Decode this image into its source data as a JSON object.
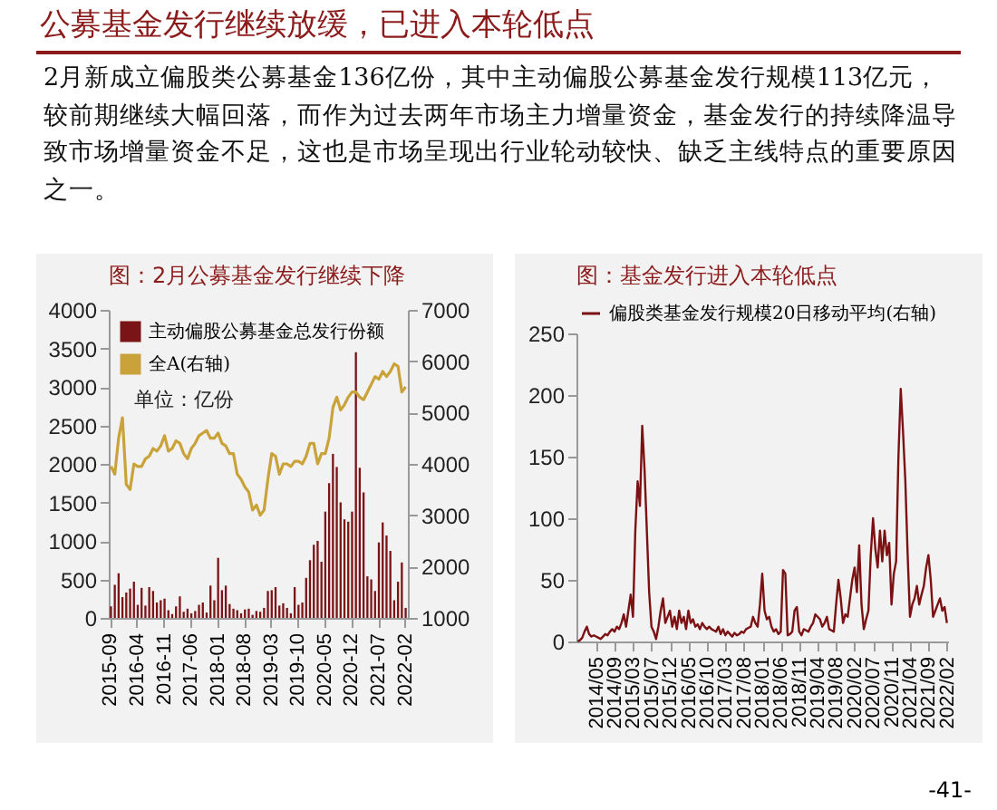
{
  "chart_data": [
    {
      "type": "other",
      "title": "公募基金发行继续放缓，已进入本轮低点",
      "annotations": [
        "2月新成立偏股类公募基金136亿份，其中主动偏股公募基金发行规模113亿元，较前期继续大幅回落，而作为过去两年市场主力增量资金，基金发行的持续降温导致市场增量资金不足，这也是市场呈现出行业轮动较快、缺乏主线特点的重要原因之一。",
        "-41-"
      ]
    },
    {
      "type": "bar",
      "title": "图：2月公募基金发行继续下降",
      "categories": [
        "2015-09",
        null,
        null,
        null,
        null,
        null,
        null,
        "2016-04",
        null,
        null,
        null,
        null,
        null,
        null,
        "2016-11",
        null,
        null,
        null,
        null,
        null,
        null,
        "2017-06",
        null,
        null,
        null,
        null,
        null,
        null,
        "2018-01",
        null,
        null,
        null,
        null,
        null,
        null,
        "2018-08",
        null,
        null,
        null,
        null,
        null,
        null,
        "2019-03",
        null,
        null,
        null,
        null,
        null,
        null,
        "2019-10",
        null,
        null,
        null,
        null,
        null,
        null,
        "2020-05",
        null,
        null,
        null,
        null,
        null,
        null,
        "2020-12",
        null,
        null,
        null,
        null,
        null,
        null,
        "2021-07",
        null,
        null,
        null,
        null,
        null,
        null,
        "2022-02"
      ],
      "series": [
        {
          "name": "主动偏股公募基金总发行份额",
          "color": "#7b1416",
          "values": [
            150,
            430,
            580,
            270,
            330,
            380,
            470,
            170,
            390,
            160,
            400,
            350,
            200,
            230,
            250,
            100,
            50,
            150,
            280,
            80,
            120,
            60,
            90,
            170,
            200,
            70,
            420,
            230,
            780,
            360,
            420,
            180,
            120,
            100,
            60,
            110,
            120,
            40,
            90,
            80,
            130,
            350,
            360,
            400,
            160,
            190,
            130,
            60,
            400,
            170,
            200,
            520,
            750,
            950,
            1000,
            730,
            1380,
            1750,
            2130,
            1960,
            1500,
            1280,
            1250,
            1380,
            3450,
            1950,
            1630,
            540,
            500,
            350,
            980,
            1240,
            1070,
            870,
            230,
            470,
            720,
            130
          ]
        },
        {
          "name": "全A(右轴)",
          "type": "line",
          "axis": "y2",
          "color": "#c9a23a",
          "values": [
            3950,
            3800,
            4500,
            4900,
            3600,
            3500,
            4000,
            3950,
            3950,
            4100,
            4150,
            4300,
            4250,
            4350,
            4550,
            4250,
            4300,
            4450,
            4400,
            4200,
            4100,
            4300,
            4400,
            4550,
            4600,
            4650,
            4500,
            4500,
            4600,
            4400,
            4350,
            4200,
            4200,
            3800,
            3700,
            3550,
            3450,
            3100,
            3200,
            3000,
            3100,
            3700,
            4200,
            4150,
            3800,
            4000,
            4000,
            3950,
            4050,
            4050,
            4000,
            4150,
            4400,
            4400,
            4000,
            4200,
            4200,
            4500,
            5100,
            5300,
            5050,
            5150,
            5300,
            5400,
            5400,
            5300,
            5250,
            5400,
            5550,
            5700,
            5650,
            5800,
            5700,
            5800,
            5950,
            5900,
            5400,
            5500
          ]
        }
      ],
      "ylim": [
        0,
        4000
      ],
      "yticks": [
        0,
        500,
        1000,
        1500,
        2000,
        2500,
        3000,
        3500,
        4000
      ],
      "y2lim": [
        1000,
        7000
      ],
      "y2ticks": [
        1000,
        2000,
        3000,
        4000,
        5000,
        6000,
        7000
      ],
      "legend": "top left",
      "annotations": [
        "单位：亿份"
      ]
    },
    {
      "type": "line",
      "title": "图：基金发行进入本轮低点",
      "categories": [
        null,
        null,
        null,
        null,
        null,
        null,
        null,
        null,
        "2014/05",
        null,
        null,
        null,
        null,
        null,
        null,
        null,
        "2014/09",
        null,
        null,
        null,
        null,
        null,
        null,
        null,
        "2015/03",
        null,
        null,
        null,
        null,
        null,
        null,
        null,
        "2015/07",
        null,
        null,
        null,
        null,
        null,
        null,
        null,
        "2015/12",
        null,
        null,
        null,
        null,
        null,
        null,
        null,
        "2016/05",
        null,
        null,
        null,
        null,
        null,
        null,
        null,
        "2016/10",
        null,
        null,
        null,
        null,
        null,
        null,
        null,
        "2017/03",
        null,
        null,
        null,
        null,
        null,
        null,
        null,
        "2017/08",
        null,
        null,
        null,
        null,
        null,
        null,
        null,
        "2018/01",
        null,
        null,
        null,
        null,
        null,
        null,
        null,
        "2018/06",
        null,
        null,
        null,
        null,
        null,
        null,
        null,
        "2018/11",
        null,
        null,
        null,
        null,
        null,
        null,
        null,
        "2019/04",
        null,
        null,
        null,
        null,
        null,
        null,
        null,
        "2019/08",
        null,
        null,
        null,
        null,
        null,
        null,
        null,
        "2020/02",
        null,
        null,
        null,
        null,
        null,
        null,
        null,
        "2020/07",
        null,
        null,
        null,
        null,
        null,
        null,
        null,
        "2020/11",
        null,
        null,
        null,
        null,
        null,
        null,
        null,
        "2021/04",
        null,
        null,
        null,
        null,
        null,
        null,
        null,
        "2021/09",
        null,
        null,
        null,
        null,
        null,
        null,
        null,
        "2022/02"
      ],
      "series": [
        {
          "name": "偏股类基金发行规模20日移动平均(右轴)",
          "color": "#7b1113",
          "values": [
            0,
            1,
            3,
            8,
            12,
            6,
            4,
            5,
            4,
            3,
            2,
            4,
            6,
            5,
            8,
            10,
            8,
            12,
            10,
            15,
            22,
            12,
            25,
            38,
            20,
            90,
            130,
            110,
            175,
            140,
            90,
            40,
            12,
            8,
            2,
            12,
            25,
            35,
            15,
            20,
            25,
            12,
            20,
            10,
            25,
            15,
            20,
            10,
            25,
            15,
            18,
            12,
            14,
            10,
            15,
            12,
            10,
            12,
            10,
            9,
            8,
            12,
            6,
            10,
            5,
            8,
            6,
            4,
            7,
            5,
            6,
            8,
            7,
            10,
            11,
            12,
            20,
            15,
            12,
            30,
            55,
            25,
            18,
            20,
            12,
            8,
            10,
            6,
            8,
            58,
            55,
            5,
            6,
            8,
            25,
            28,
            8,
            5,
            10,
            9,
            8,
            12,
            15,
            22,
            20,
            18,
            12,
            15,
            20,
            10,
            9,
            8,
            30,
            50,
            35,
            15,
            22,
            20,
            35,
            50,
            60,
            40,
            78,
            30,
            10,
            18,
            25,
            70,
            100,
            75,
            60,
            90,
            65,
            90,
            70,
            80,
            30,
            55,
            65,
            150,
            205,
            170,
            130,
            70,
            20,
            30,
            35,
            45,
            30,
            38,
            45,
            60,
            70,
            50,
            20,
            25,
            30,
            35,
            25,
            28,
            15
          ]
        }
      ],
      "ylim": [
        0,
        250
      ],
      "yticks": [
        0,
        50,
        100,
        150,
        200,
        250
      ],
      "legend": "top"
    }
  ]
}
